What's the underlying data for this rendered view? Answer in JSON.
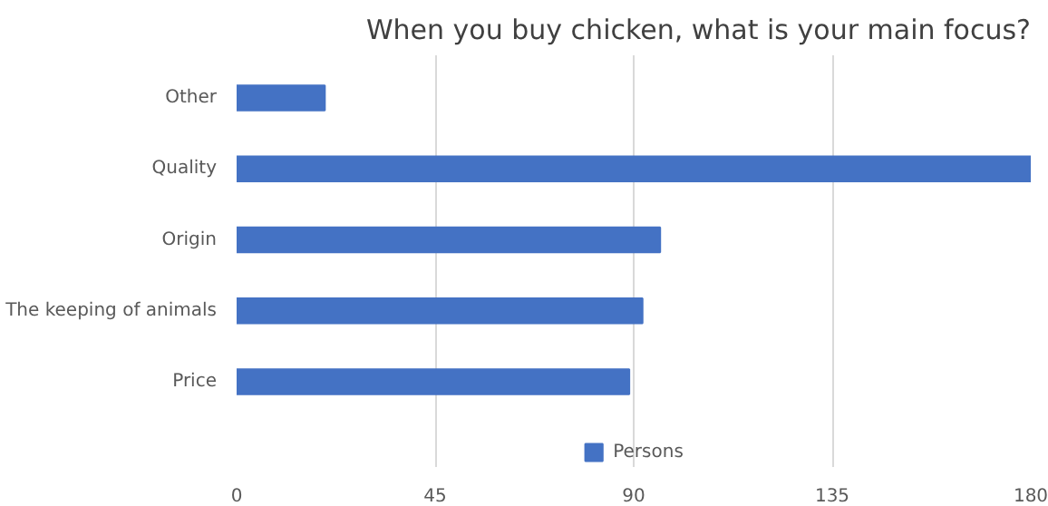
{
  "chart_data": {
    "type": "bar",
    "orientation": "horizontal",
    "title": "When you buy chicken, what is your main focus?",
    "categories": [
      "Other",
      "Quality",
      "Origin",
      "The keeping of animals",
      "Price"
    ],
    "series": [
      {
        "name": "Persons",
        "color": "#4472c4",
        "values": [
          20,
          180,
          96,
          92,
          89
        ]
      }
    ],
    "xlim": [
      0,
      180
    ],
    "xticks": [
      0,
      45,
      90,
      135,
      180
    ],
    "grid": "x",
    "legend": "bottom"
  }
}
